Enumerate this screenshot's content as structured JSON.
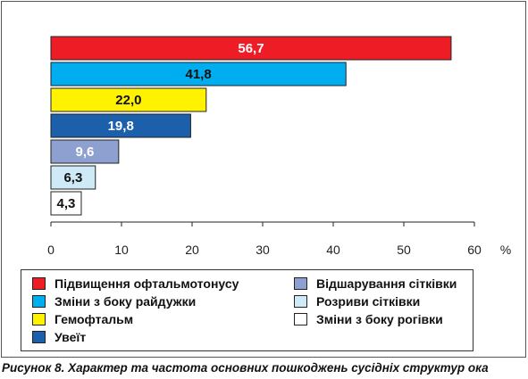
{
  "chart_data": {
    "type": "bar",
    "orientation": "horizontal",
    "categories": [
      "Підвищення офтальмотонусу",
      "Зміни з боку райдужки",
      "Гемофтальм",
      "Увеїт",
      "Відшарування сітківки",
      "Розриви сітківки",
      "Зміни з боку рогівки"
    ],
    "values": [
      56.7,
      41.8,
      22.0,
      19.8,
      9.6,
      6.3,
      4.3
    ],
    "value_labels": [
      "56,7",
      "41,8",
      "22,0",
      "19,8",
      "9,6",
      "6,3",
      "4,3"
    ],
    "colors": [
      "#ee1c25",
      "#00aeef",
      "#fff200",
      "#1c5fab",
      "#8da0cf",
      "#cfeaf7",
      "#ffffff"
    ],
    "label_colors": [
      "#ffffff",
      "#111111",
      "#111111",
      "#ffffff",
      "#ffffff",
      "#111111",
      "#111111"
    ],
    "xlim": [
      0,
      60
    ],
    "xticks": [
      0,
      10,
      20,
      30,
      40,
      50,
      60
    ],
    "x_unit": "%",
    "grid": false,
    "legend_position": "bottom"
  },
  "legend": {
    "items": [
      {
        "label": "Підвищення офтальмотонусу",
        "color": "#ee1c25"
      },
      {
        "label": "Зміни з боку райдужки",
        "color": "#00aeef"
      },
      {
        "label": "Гемофтальм",
        "color": "#fff200"
      },
      {
        "label": "Увеїт",
        "color": "#1c5fab"
      },
      {
        "label": "Відшарування сітківки",
        "color": "#8da0cf"
      },
      {
        "label": "Розриви сітківки",
        "color": "#cfeaf7"
      },
      {
        "label": "Зміни з боку рогівки",
        "color": "#ffffff"
      }
    ]
  },
  "caption": "Рисунок 8. Характер та частота основних пошкоджень сусідніх структур ока"
}
